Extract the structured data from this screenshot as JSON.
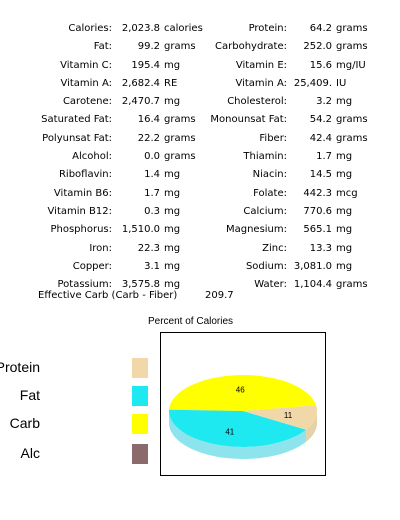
{
  "nutrition": {
    "rows": [
      {
        "l1": "Calories:",
        "v1": "2,023.8",
        "u1": "calories",
        "l2": "Protein:",
        "v2": "64.2",
        "u2": "grams"
      },
      {
        "l1": "Fat:",
        "v1": "99.2",
        "u1": "grams",
        "l2": "Carbohydrate:",
        "v2": "252.0",
        "u2": "grams"
      },
      {
        "l1": "Vitamin C:",
        "v1": "195.4",
        "u1": "mg",
        "l2": "Vitamin E:",
        "v2": "15.6",
        "u2": "mg/IU"
      },
      {
        "l1": "Vitamin A:",
        "v1": "2,682.4",
        "u1": "RE",
        "l2": "Vitamin A:",
        "v2": "25,409.",
        "u2": "IU"
      },
      {
        "l1": "Carotene:",
        "v1": "2,470.7",
        "u1": "mg",
        "l2": "Cholesterol:",
        "v2": "3.2",
        "u2": "mg"
      },
      {
        "l1": "Saturated Fat:",
        "v1": "16.4",
        "u1": "grams",
        "l2": "Monounsat Fat:",
        "v2": "54.2",
        "u2": "grams"
      },
      {
        "l1": "Polyunsat Fat:",
        "v1": "22.2",
        "u1": "grams",
        "l2": "Fiber:",
        "v2": "42.4",
        "u2": "grams"
      },
      {
        "l1": "Alcohol:",
        "v1": "0.0",
        "u1": "grams",
        "l2": "Thiamin:",
        "v2": "1.7",
        "u2": "mg"
      },
      {
        "l1": "Riboflavin:",
        "v1": "1.4",
        "u1": "mg",
        "l2": "Niacin:",
        "v2": "14.5",
        "u2": "mg"
      },
      {
        "l1": "Vitamin B6:",
        "v1": "1.7",
        "u1": "mg",
        "l2": "Folate:",
        "v2": "442.3",
        "u2": "mcg"
      },
      {
        "l1": "Vitamin B12:",
        "v1": "0.3",
        "u1": "mg",
        "l2": "Calcium:",
        "v2": "770.6",
        "u2": "mg"
      },
      {
        "l1": "Phosphorus:",
        "v1": "1,510.0",
        "u1": "mg",
        "l2": "Magnesium:",
        "v2": "565.1",
        "u2": "mg"
      },
      {
        "l1": "Iron:",
        "v1": "22.3",
        "u1": "mg",
        "l2": "Zinc:",
        "v2": "13.3",
        "u2": "mg"
      },
      {
        "l1": "Copper:",
        "v1": "3.1",
        "u1": "mg",
        "l2": "Sodium:",
        "v2": "3,081.0",
        "u2": "mg"
      },
      {
        "l1": "Potassium:",
        "v1": "3,575.8",
        "u1": "mg",
        "l2": "Water:",
        "v2": "1,104.4",
        "u2": "grams"
      }
    ],
    "effective_carb_label": "Effective Carb (Carb - Fiber)",
    "effective_carb_value": "209.7"
  },
  "chart_data": {
    "type": "pie",
    "title": "Percent of Calories",
    "categories": [
      "Protein",
      "Fat",
      "Carb",
      "Alc"
    ],
    "values": [
      11,
      41,
      46,
      0
    ],
    "colors": [
      "#f0d8a8",
      "#1ee8f0",
      "#ffff00",
      "#8a6a6a"
    ],
    "side_colors": [
      "#e6d2a8",
      "#8ee4ec",
      "#dada00",
      "#6a5050"
    ],
    "legend_position": "left"
  }
}
